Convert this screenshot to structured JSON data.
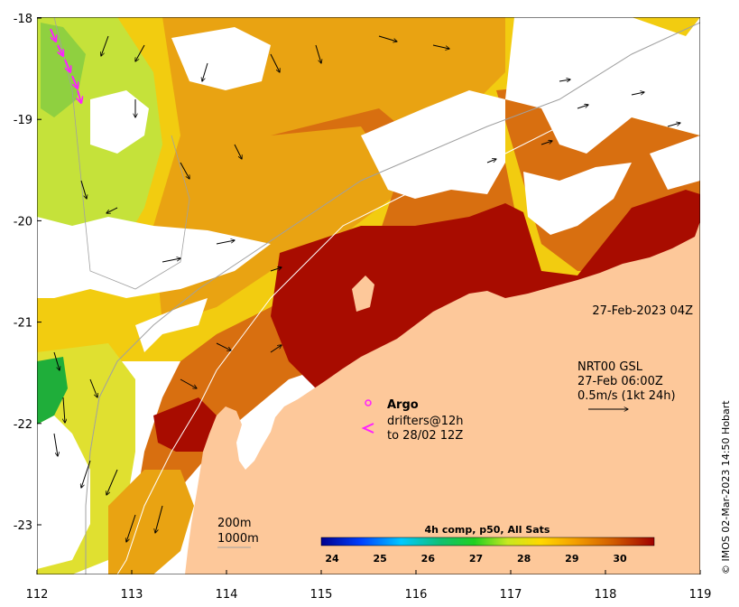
{
  "map": {
    "x_ticks": [
      "112",
      "113",
      "114",
      "115",
      "116",
      "117",
      "118",
      "119"
    ],
    "y_ticks": [
      "-18",
      "-19",
      "-20",
      "-21",
      "-22",
      "-23"
    ],
    "timestamp": "27-Feb-2023 04Z",
    "current_legend": {
      "line1": "NRT00 GSL",
      "line2": "27-Feb 06:00Z",
      "line3": "0.5m/s (1kt 24h)"
    },
    "argo_legend": {
      "argo_label": "Argo",
      "drifters_line1": "drifters@12h",
      "drifters_line2": "to 28/02 12Z"
    },
    "isobath_legend": {
      "line1": "200m",
      "line2": "1000m"
    },
    "colorbar": {
      "title": "4h comp, p50, All Sats",
      "ticks": [
        "24",
        "25",
        "26",
        "27",
        "28",
        "29",
        "30"
      ]
    },
    "credit": "© IMOS 02-Mar-2023 14:50 Hobart",
    "colors": {
      "land": "#fdc89a",
      "hot": "#a80c00",
      "warm": "#d86f10",
      "mid": "#e9a312",
      "cool": "#f2cc10",
      "cooler": "#c5e23a",
      "green": "#1fae3a",
      "argo": "#ff20ff"
    }
  }
}
